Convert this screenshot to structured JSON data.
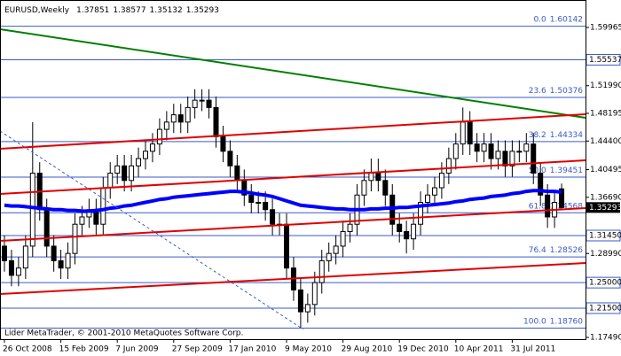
{
  "chart_data": {
    "type": "candlestick",
    "title": "EURUSD,Weekly",
    "categories": [
      "26 Oct 2008",
      null,
      null,
      null,
      null,
      null,
      null,
      null,
      "15 Feb 2009",
      null,
      null,
      null,
      null,
      null,
      null,
      null,
      "7 Jun 2009",
      null,
      null,
      null,
      null,
      null,
      null,
      null,
      "27 Sep 2009",
      null,
      null,
      null,
      null,
      null,
      null,
      null,
      "17 Jan 2010",
      null,
      null,
      null,
      null,
      null,
      null,
      null,
      "9 May 2010",
      null,
      null,
      null,
      null,
      null,
      null,
      null,
      "29 Aug 2010",
      null,
      null,
      null,
      null,
      null,
      null,
      null,
      "19 Dec 2010",
      null,
      null,
      null,
      null,
      null,
      null,
      null,
      "10 Apr 2011",
      null,
      null,
      null,
      null,
      null,
      null,
      null,
      "31 Jul 2011",
      null,
      null,
      null,
      null,
      null,
      null,
      null
    ],
    "open": [
      1.3,
      1.28,
      1.26,
      1.27,
      1.3,
      1.4,
      1.35,
      1.3,
      1.28,
      1.27,
      1.29,
      1.33,
      1.34,
      1.35,
      1.33,
      1.38,
      1.4,
      1.41,
      1.39,
      1.41,
      1.42,
      1.43,
      1.44,
      1.46,
      1.47,
      1.48,
      1.47,
      1.49,
      1.5,
      1.5,
      1.49,
      1.45,
      1.43,
      1.41,
      1.39,
      1.37,
      1.36,
      1.36,
      1.35,
      1.33,
      1.33,
      1.27,
      1.24,
      1.21,
      1.22,
      1.25,
      1.28,
      1.29,
      1.3,
      1.32,
      1.33,
      1.37,
      1.39,
      1.4,
      1.39,
      1.37,
      1.33,
      1.32,
      1.31,
      1.33,
      1.36,
      1.37,
      1.38,
      1.4,
      1.42,
      1.44,
      1.47,
      1.44,
      1.43,
      1.44,
      1.42,
      1.43,
      1.41,
      1.43,
      1.43,
      1.44,
      1.4,
      1.37,
      1.34,
      1.37851
    ],
    "high": [
      1.315,
      1.295,
      1.285,
      1.315,
      1.47,
      1.415,
      1.365,
      1.315,
      1.295,
      1.305,
      1.345,
      1.355,
      1.365,
      1.365,
      1.395,
      1.415,
      1.425,
      1.425,
      1.425,
      1.435,
      1.445,
      1.455,
      1.475,
      1.485,
      1.495,
      1.495,
      1.505,
      1.515,
      1.515,
      1.515,
      1.505,
      1.465,
      1.445,
      1.425,
      1.405,
      1.385,
      1.375,
      1.375,
      1.365,
      1.345,
      1.345,
      1.285,
      1.255,
      1.235,
      1.265,
      1.295,
      1.305,
      1.315,
      1.335,
      1.345,
      1.385,
      1.405,
      1.42,
      1.42,
      1.405,
      1.385,
      1.345,
      1.335,
      1.345,
      1.375,
      1.385,
      1.395,
      1.415,
      1.435,
      1.455,
      1.49,
      1.485,
      1.455,
      1.455,
      1.455,
      1.445,
      1.445,
      1.445,
      1.445,
      1.455,
      1.455,
      1.415,
      1.385,
      1.375,
      1.38577
    ],
    "low": [
      1.265,
      1.245,
      1.245,
      1.255,
      1.285,
      1.335,
      1.285,
      1.265,
      1.255,
      1.255,
      1.275,
      1.315,
      1.325,
      1.315,
      1.315,
      1.365,
      1.385,
      1.375,
      1.375,
      1.395,
      1.405,
      1.415,
      1.425,
      1.445,
      1.455,
      1.455,
      1.455,
      1.475,
      1.485,
      1.475,
      1.435,
      1.415,
      1.395,
      1.375,
      1.355,
      1.345,
      1.345,
      1.335,
      1.315,
      1.315,
      1.255,
      1.225,
      1.188,
      1.195,
      1.205,
      1.235,
      1.265,
      1.275,
      1.285,
      1.305,
      1.315,
      1.355,
      1.375,
      1.375,
      1.355,
      1.315,
      1.305,
      1.29,
      1.295,
      1.315,
      1.345,
      1.355,
      1.365,
      1.385,
      1.405,
      1.425,
      1.425,
      1.415,
      1.415,
      1.405,
      1.405,
      1.395,
      1.395,
      1.415,
      1.415,
      1.385,
      1.355,
      1.325,
      1.325,
      1.35132
    ],
    "close": [
      1.28,
      1.26,
      1.27,
      1.3,
      1.4,
      1.35,
      1.3,
      1.28,
      1.27,
      1.29,
      1.33,
      1.34,
      1.35,
      1.33,
      1.38,
      1.4,
      1.41,
      1.39,
      1.41,
      1.42,
      1.43,
      1.44,
      1.46,
      1.47,
      1.48,
      1.47,
      1.49,
      1.5,
      1.5,
      1.49,
      1.45,
      1.43,
      1.41,
      1.39,
      1.37,
      1.36,
      1.36,
      1.35,
      1.33,
      1.33,
      1.27,
      1.24,
      1.21,
      1.22,
      1.25,
      1.28,
      1.29,
      1.3,
      1.32,
      1.33,
      1.37,
      1.39,
      1.4,
      1.39,
      1.37,
      1.33,
      1.32,
      1.31,
      1.33,
      1.36,
      1.37,
      1.38,
      1.4,
      1.42,
      1.44,
      1.47,
      1.44,
      1.43,
      1.44,
      1.42,
      1.43,
      1.41,
      1.43,
      1.43,
      1.44,
      1.4,
      1.37,
      1.34,
      1.36,
      1.35293
    ],
    "candle_color": "#000000",
    "moving_average": {
      "color": "#0000ff",
      "values": [
        1.356,
        1.355,
        1.355,
        1.354,
        1.353,
        1.352,
        1.351,
        1.35,
        1.35,
        1.349,
        1.349,
        1.348,
        1.348,
        1.349,
        1.35,
        1.352,
        1.353,
        1.355,
        1.356,
        1.358,
        1.36,
        1.362,
        1.364,
        1.365,
        1.367,
        1.368,
        1.369,
        1.37,
        1.371,
        1.372,
        1.373,
        1.374,
        1.375,
        1.375,
        1.374,
        1.373,
        1.371,
        1.37,
        1.368,
        1.365,
        1.362,
        1.359,
        1.356,
        1.355,
        1.354,
        1.353,
        1.352,
        1.351,
        1.351,
        1.35,
        1.35,
        1.35,
        1.351,
        1.351,
        1.352,
        1.352,
        1.353,
        1.353,
        1.354,
        1.355,
        1.356,
        1.357,
        1.358,
        1.359,
        1.361,
        1.362,
        1.364,
        1.365,
        1.366,
        1.368,
        1.369,
        1.37,
        1.372,
        1.373,
        1.375,
        1.376,
        1.376,
        1.375,
        1.375,
        1.374
      ]
    },
    "ylim": [
      1.1725,
      1.6373
    ],
    "yticks": [
      1.59965,
      {
        "value": 1.5199,
        "label": "1.51990"
      },
      1.48195,
      {
        "value": 1.444,
        "label": "1.44400"
      },
      1.40495,
      {
        "value": 1.3669,
        "label": "1.36690"
      },
      {
        "value": 1.2899,
        "label": "1.28990"
      },
      {
        "value": 1.1749,
        "label": "1.17490"
      }
    ],
    "price_lines": {
      "color": "#3a5ac8",
      "levels": [
        1.55537,
        {
          "value": 1.3145,
          "label": "1.31450"
        },
        {
          "value": 1.25,
          "label": "1.25000"
        },
        {
          "value": 1.215,
          "label": "1.21500"
        }
      ]
    },
    "fibonacci": {
      "color": "#3a5ac8",
      "levels": [
        {
          "level": "0.0",
          "price": 1.60142
        },
        {
          "level": "23.6",
          "price": 1.50376
        },
        {
          "level": "38.2",
          "price": 1.44334
        },
        {
          "level": "50.0",
          "price": 1.39451
        },
        {
          "level": "61.8",
          "price": 1.34568
        },
        {
          "level": "76.4",
          "price": 1.28526
        },
        {
          "level": "100.0",
          "price": {
            "value": 1.1876,
            "label": "1.18760"
          }
        }
      ]
    },
    "footer": "Lider MetaTrader, © 2001-2010 MetaQuotes Software Corp."
  }
}
